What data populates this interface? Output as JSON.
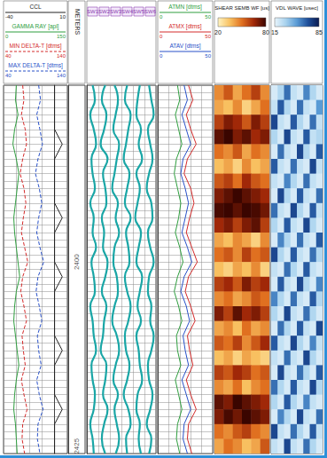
{
  "chart_data": {
    "type": "well_log",
    "depth_label": "METERS",
    "ylim": [
      2376,
      2426
    ],
    "yticks": [
      2400,
      2425
    ],
    "grid": true,
    "depth": [
      2376,
      2378,
      2380,
      2382,
      2384,
      2386,
      2388,
      2390,
      2392,
      2394,
      2396,
      2398,
      2400,
      2402,
      2404,
      2406,
      2408,
      2410,
      2412,
      2414,
      2416,
      2418,
      2420,
      2422,
      2424,
      2426
    ],
    "tracks": [
      {
        "type": "line",
        "curves": [
          {
            "name": "CCL",
            "color": "#222222",
            "xlim": [
              -40,
              10
            ],
            "line_style": "solid",
            "values": [
              0,
              0,
              0,
              0,
              6,
              0,
              0,
              0,
              0,
              6,
              0,
              0,
              0,
              6,
              0,
              0,
              0,
              0,
              6,
              0,
              0,
              0,
              6,
              0,
              0,
              0
            ]
          },
          {
            "name": "GAMMA RAY [api]",
            "color": "#2e9e3e",
            "xlim": [
              0,
              150
            ],
            "line_style": "solid",
            "values": [
              30,
              28,
              34,
              26,
              22,
              30,
              36,
              32,
              28,
              24,
              26,
              30,
              34,
              38,
              30,
              26,
              24,
              28,
              32,
              36,
              30,
              26,
              24,
              28,
              30,
              32
            ]
          },
          {
            "name": "MIN DELTA-T [dtms]",
            "color": "#d42a2a",
            "xlim": [
              40,
              140
            ],
            "line_style": "dashed",
            "values": [
              70,
              72,
              68,
              74,
              76,
              70,
              66,
              72,
              75,
              71,
              68,
              73,
              78,
              70,
              67,
              72,
              76,
              69,
              71,
              74,
              68,
              72,
              77,
              70,
              69,
              73
            ]
          },
          {
            "name": "MAX DELTA-T [dtms]",
            "color": "#2850c8",
            "xlim": [
              40,
              140
            ],
            "line_style": "dashed",
            "values": [
              95,
              98,
              92,
              97,
              101,
              94,
              90,
              96,
              100,
              95,
              92,
              97,
              103,
              94,
              91,
              96,
              100,
              93,
              95,
              99,
              92,
              96,
              102,
              94,
              93,
              97
            ]
          }
        ]
      },
      {
        "type": "depth"
      },
      {
        "type": "wave",
        "color": "#1aa6a6",
        "xlim": [
          0,
          6
        ],
        "headers": [
          "SW1",
          "SW2",
          "SW3",
          "SW4",
          "SW5",
          "SW6"
        ],
        "series": [
          {
            "values": [
              0.5,
              0.7,
              0.3,
              0.6,
              0.8,
              0.4,
              0.5,
              0.7,
              0.3,
              0.6,
              0.5,
              0.8,
              0.4,
              0.6,
              0.7,
              0.3,
              0.5,
              0.6,
              0.8,
              0.4,
              0.5,
              0.7,
              0.6,
              0.3,
              0.5,
              0.6
            ]
          },
          {
            "values": [
              1.6,
              1.3,
              1.7,
              1.5,
              1.2,
              1.8,
              1.4,
              1.6,
              1.7,
              1.3,
              1.5,
              1.4,
              1.8,
              1.6,
              1.3,
              1.7,
              1.5,
              1.4,
              1.2,
              1.7,
              1.6,
              1.4,
              1.8,
              1.5,
              1.3,
              1.6
            ]
          },
          {
            "values": [
              2.4,
              2.7,
              2.5,
              2.3,
              2.8,
              2.6,
              2.4,
              2.2,
              2.7,
              2.5,
              2.8,
              2.4,
              2.3,
              2.6,
              2.7,
              2.4,
              2.2,
              2.6,
              2.8,
              2.5,
              2.3,
              2.7,
              2.4,
              2.6,
              2.8,
              2.5
            ]
          },
          {
            "values": [
              3.5,
              3.3,
              3.8,
              3.6,
              3.4,
              3.2,
              3.7,
              3.5,
              3.3,
              3.8,
              3.4,
              3.6,
              3.7,
              3.3,
              3.5,
              3.8,
              3.6,
              3.3,
              3.4,
              3.7,
              3.5,
              3.2,
              3.6,
              3.8,
              3.4,
              3.5
            ]
          },
          {
            "values": [
              4.6,
              4.4,
              4.3,
              4.7,
              4.5,
              4.8,
              4.3,
              4.6,
              4.4,
              4.2,
              4.7,
              4.5,
              4.3,
              4.8,
              4.6,
              4.4,
              4.7,
              4.3,
              4.5,
              4.6,
              4.8,
              4.4,
              4.3,
              4.6,
              4.5,
              4.7
            ]
          },
          {
            "values": [
              5.4,
              5.6,
              5.8,
              5.3,
              5.5,
              5.7,
              5.4,
              5.2,
              5.6,
              5.7,
              5.3,
              5.5,
              5.8,
              5.4,
              5.3,
              5.6,
              5.5,
              5.8,
              5.6,
              5.3,
              5.4,
              5.7,
              5.5,
              5.2,
              5.6,
              5.4
            ]
          }
        ]
      },
      {
        "type": "line",
        "curves": [
          {
            "name": "ATMN [dtms]",
            "color": "#2e9e3e",
            "xlim": [
              0,
              50
            ],
            "line_style": "solid",
            "values": [
              18,
              20,
              16,
              19,
              22,
              17,
              15,
              18,
              21,
              19,
              16,
              20,
              23,
              18,
              15,
              19,
              22,
              17,
              18,
              21,
              16,
              19,
              22,
              18,
              17,
              20
            ]
          },
          {
            "name": "ATMX [dtms]",
            "color": "#d42a2a",
            "xlim": [
              0,
              50
            ],
            "line_style": "solid",
            "values": [
              28,
              32,
              26,
              30,
              35,
              27,
              24,
              30,
              33,
              29,
              26,
              31,
              36,
              28,
              25,
              30,
              34,
              27,
              29,
              32,
              26,
              30,
              35,
              28,
              27,
              31
            ]
          },
          {
            "name": "ATAV [dtms]",
            "color": "#2850c8",
            "xlim": [
              0,
              50
            ],
            "line_style": "solid",
            "values": [
              24,
              27,
              22,
              26,
              30,
              23,
              21,
              25,
              28,
              25,
              22,
              27,
              31,
              24,
              21,
              26,
              29,
              23,
              25,
              28,
              22,
              26,
              30,
              24,
              23,
              27
            ]
          }
        ]
      },
      {
        "type": "heatmap",
        "title": "SHEAR SEMB WF [us]",
        "colors": [
          "#fff3c0",
          "#f8c060",
          "#e07020",
          "#a02808",
          "#3a0500"
        ],
        "colorbar": {
          "range": [
            20,
            80
          ],
          "ticks": [
            20,
            80
          ]
        },
        "cells": [
          [
            45,
            55,
            40,
            50,
            60,
            45
          ],
          [
            40,
            35,
            45,
            30,
            40,
            50
          ],
          [
            60,
            70,
            65,
            55,
            70,
            60
          ],
          [
            75,
            80,
            70,
            75,
            65,
            70
          ],
          [
            50,
            45,
            55,
            40,
            50,
            45
          ],
          [
            35,
            40,
            30,
            45,
            35,
            40
          ],
          [
            55,
            60,
            50,
            65,
            55,
            50
          ],
          [
            70,
            75,
            80,
            75,
            70,
            65
          ],
          [
            78,
            80,
            75,
            80,
            78,
            72
          ],
          [
            65,
            70,
            60,
            70,
            75,
            60
          ],
          [
            40,
            35,
            45,
            40,
            30,
            45
          ],
          [
            50,
            55,
            45,
            60,
            50,
            55
          ],
          [
            35,
            30,
            40,
            35,
            45,
            30
          ],
          [
            60,
            65,
            55,
            70,
            60,
            65
          ],
          [
            45,
            50,
            40,
            45,
            55,
            50
          ],
          [
            70,
            60,
            75,
            65,
            70,
            60
          ],
          [
            40,
            45,
            35,
            50,
            40,
            45
          ],
          [
            55,
            50,
            60,
            45,
            55,
            65
          ],
          [
            35,
            40,
            30,
            40,
            35,
            30
          ],
          [
            60,
            55,
            65,
            60,
            50,
            55
          ],
          [
            45,
            40,
            50,
            35,
            45,
            50
          ],
          [
            75,
            70,
            80,
            75,
            70,
            65
          ],
          [
            70,
            78,
            72,
            80,
            75,
            70
          ],
          [
            50,
            45,
            55,
            60,
            50,
            45
          ],
          [
            40,
            50,
            45,
            35,
            40,
            55
          ]
        ]
      },
      {
        "type": "heatmap",
        "title": "VDL WAVE [usec]",
        "colors": [
          "#e8f4fb",
          "#a8d2ee",
          "#5a9bd5",
          "#1f4f9a",
          "#0a1a50"
        ],
        "colorbar": {
          "range": [
            15,
            85
          ],
          "ticks": [
            15,
            85
          ]
        },
        "cells": [
          [
            20,
            30,
            60,
            25,
            20,
            55,
            30,
            20
          ],
          [
            25,
            65,
            30,
            20,
            60,
            25,
            20,
            50
          ],
          [
            70,
            25,
            20,
            65,
            30,
            20,
            60,
            25
          ],
          [
            30,
            20,
            70,
            25,
            20,
            65,
            25,
            30
          ],
          [
            20,
            60,
            25,
            20,
            70,
            30,
            20,
            65
          ],
          [
            65,
            25,
            20,
            60,
            25,
            20,
            70,
            25
          ],
          [
            25,
            20,
            55,
            30,
            20,
            60,
            25,
            20
          ],
          [
            20,
            70,
            30,
            20,
            65,
            25,
            20,
            60
          ],
          [
            60,
            25,
            20,
            70,
            30,
            20,
            65,
            25
          ],
          [
            30,
            20,
            65,
            25,
            20,
            70,
            30,
            20
          ],
          [
            20,
            55,
            30,
            20,
            60,
            25,
            20,
            65
          ],
          [
            70,
            30,
            20,
            65,
            25,
            20,
            60,
            30
          ],
          [
            25,
            20,
            60,
            30,
            20,
            65,
            25,
            20
          ],
          [
            20,
            65,
            25,
            20,
            70,
            30,
            20,
            55
          ],
          [
            55,
            30,
            20,
            60,
            25,
            20,
            65,
            30
          ],
          [
            30,
            20,
            70,
            25,
            20,
            60,
            30,
            20
          ],
          [
            20,
            60,
            30,
            20,
            65,
            25,
            20,
            70
          ],
          [
            65,
            25,
            20,
            70,
            30,
            20,
            55,
            25
          ],
          [
            25,
            20,
            60,
            25,
            20,
            70,
            30,
            20
          ],
          [
            20,
            70,
            25,
            20,
            60,
            30,
            20,
            65
          ],
          [
            60,
            30,
            20,
            65,
            25,
            20,
            70,
            30
          ],
          [
            30,
            20,
            65,
            30,
            20,
            55,
            25,
            20
          ],
          [
            20,
            55,
            30,
            20,
            70,
            25,
            20,
            60
          ],
          [
            70,
            25,
            20,
            60,
            30,
            20,
            65,
            25
          ],
          [
            25,
            20,
            70,
            25,
            20,
            60,
            30,
            20
          ]
        ]
      }
    ]
  }
}
